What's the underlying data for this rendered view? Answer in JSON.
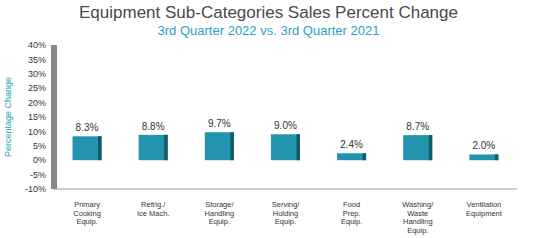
{
  "chart_data": {
    "type": "bar",
    "title": "Equipment Sub-Categories Sales Percent Change",
    "subtitle": "3rd Quarter 2022 vs. 3rd Quarter 2021",
    "y_label": "Percentage Change",
    "categories": [
      "Primary Cooking Equip.",
      "Refrig./ Ice Mach.",
      "Storage/ Handling Equip.",
      "Serving/ Holding Equip.",
      "Food Prep. Equip.",
      "Washing/ Waste Handling Equip.",
      "Ventilation Equipment"
    ],
    "values": [
      8.3,
      8.8,
      9.7,
      9.0,
      2.4,
      8.7,
      2.0
    ],
    "value_labels": [
      "8.3%",
      "8.8%",
      "9.7%",
      "9.0%",
      "2.4%",
      "8.7%",
      "2.0%"
    ],
    "data_labels": true,
    "color": "#2294ae",
    "ylim": [
      -10,
      40
    ],
    "yticks": [
      {
        "value": -10,
        "label": "-10%"
      },
      {
        "value": -5,
        "label": "-5%"
      },
      {
        "value": 0,
        "label": "0%"
      },
      {
        "value": 5,
        "label": "5%"
      },
      {
        "value": 10,
        "label": "10%"
      },
      {
        "value": 15,
        "label": "15%"
      },
      {
        "value": 20,
        "label": "20%"
      },
      {
        "value": 25,
        "label": "25%"
      },
      {
        "value": 30,
        "label": "30%"
      },
      {
        "value": 35,
        "label": "35%"
      },
      {
        "value": 40,
        "label": "40%"
      }
    ],
    "grid": false
  }
}
